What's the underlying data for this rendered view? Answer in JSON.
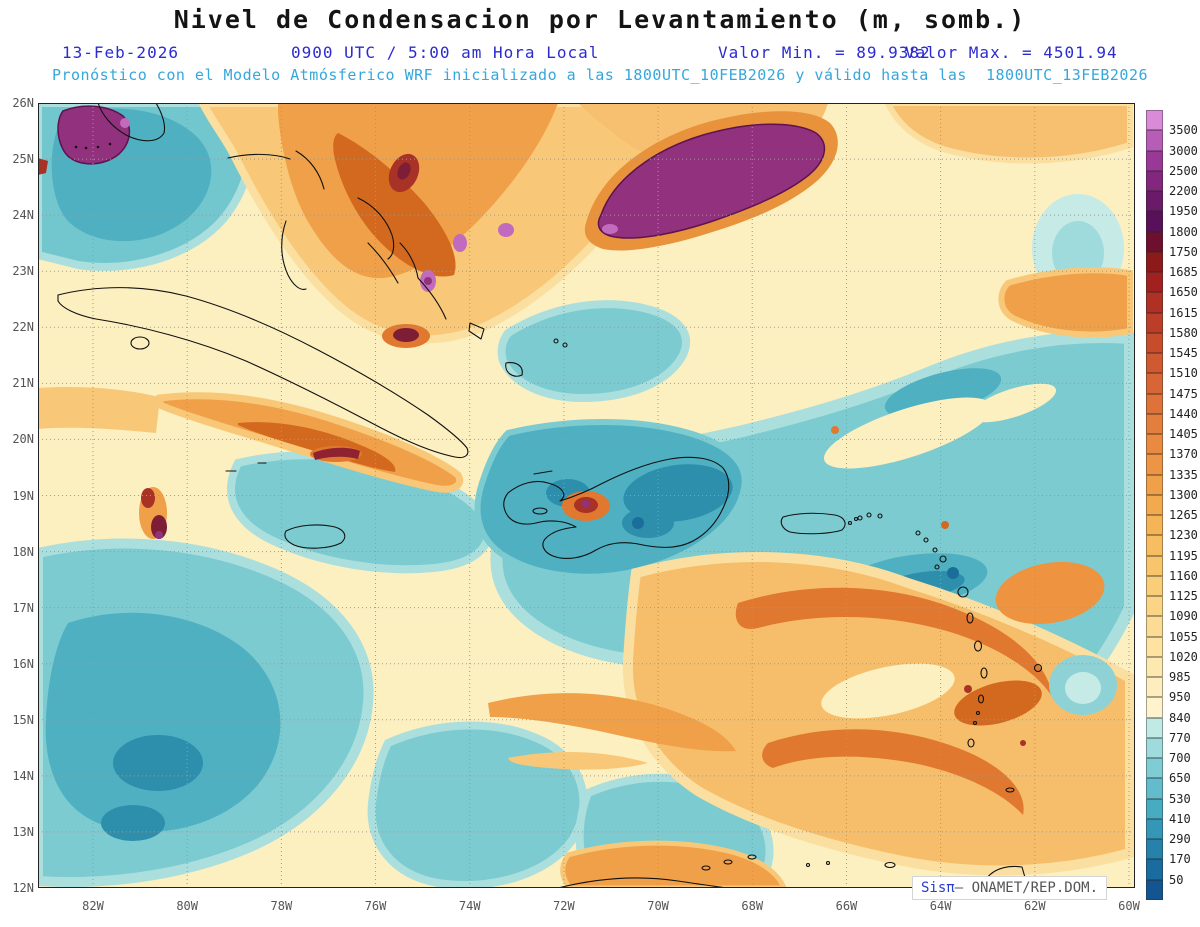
{
  "header": {
    "title": "Nivel de Condensacion por Levantamiento (m, somb.)",
    "date": "13-Feb-2026",
    "time": "0900 UTC / 5:00 am Hora Local",
    "min_label": "Valor Min. = 89.9382",
    "max_label": "Valor Max. = 4501.94",
    "forecast": "Pronóstico con el Modelo Atmósferico WRF inicializado a las 1800UTC_10FEB2026 y válido hasta las  1800UTC_13FEB2026"
  },
  "axes": {
    "lat_labels": [
      "26N",
      "25N",
      "24N",
      "23N",
      "22N",
      "21N",
      "20N",
      "19N",
      "18N",
      "17N",
      "16N",
      "15N",
      "14N",
      "13N",
      "12N"
    ],
    "lon_labels": [
      "82W",
      "80W",
      "78W",
      "76W",
      "74W",
      "72W",
      "70W",
      "68W",
      "66W",
      "64W",
      "62W",
      "60W"
    ]
  },
  "colorbar": {
    "labels": [
      "3500",
      "3000",
      "2500",
      "2200",
      "1950",
      "1800",
      "1750",
      "1685",
      "1650",
      "1615",
      "1580",
      "1545",
      "1510",
      "1475",
      "1440",
      "1405",
      "1370",
      "1335",
      "1300",
      "1265",
      "1230",
      "1195",
      "1160",
      "1125",
      "1090",
      "1055",
      "1020",
      "985",
      "950",
      "840",
      "770",
      "700",
      "650",
      "530",
      "410",
      "290",
      "170",
      "50"
    ],
    "colors": [
      "#D98BD9",
      "#B75CB7",
      "#9A3898",
      "#82267E",
      "#6A1A68",
      "#58105A",
      "#6E0F30",
      "#8C1A1A",
      "#A32020",
      "#B03024",
      "#BC3E28",
      "#C74C2C",
      "#D05A30",
      "#D86634",
      "#DE7238",
      "#E47E3C",
      "#E98A40",
      "#ED9544",
      "#F0A048",
      "#F3AA4E",
      "#F5B456",
      "#F7BD60",
      "#F8C56C",
      "#FACD78",
      "#FBD486",
      "#FCDB94",
      "#FDE2A2",
      "#FDE8B0",
      "#FEEDBE",
      "#FEF3CC",
      "#C2EAE4",
      "#9FDBDC",
      "#7FCCD4",
      "#62BCCB",
      "#47ABC2",
      "#3497B7",
      "#2682AB",
      "#1B6C9E",
      "#125590"
    ]
  },
  "watermark": {
    "brand": "Sisπ",
    "text": "– ONAMET/REP.DOM."
  },
  "chart_data": {
    "type": "heatmap",
    "title": "Nivel de Condensacion por Levantamiento (m, somb.)",
    "units": "m",
    "value_min": 89.9382,
    "value_max": 4501.94,
    "valid_date": "13-Feb-2026",
    "valid_time": "0900 UTC / 5:00 am Hora Local",
    "model": "WRF",
    "initialized": "1800UTC_10FEB2026",
    "valid_until": "1800UTC_13FEB2026",
    "lat_range_deg_north": [
      12,
      26
    ],
    "lon_range_deg_west": [
      83.2,
      59.8
    ],
    "grid": "1 deg latitude x 2 deg longitude dotted graticule",
    "contour_levels_m": [
      50,
      170,
      290,
      410,
      530,
      650,
      700,
      770,
      840,
      950,
      985,
      1020,
      1055,
      1090,
      1125,
      1160,
      1195,
      1230,
      1265,
      1300,
      1335,
      1370,
      1405,
      1440,
      1475,
      1510,
      1545,
      1580,
      1615,
      1650,
      1685,
      1750,
      1800,
      1950,
      2200,
      2500,
      3000,
      3500
    ],
    "legend_position": "right",
    "notable_features": [
      {
        "feature": "maximum purple region >3000 m",
        "approx_location": "24N-25N, 66.5W-71.5W open Atlantic"
      },
      {
        "feature": "purple maximum",
        "approx_location": "25.5N-26N near 82W-83W (Florida/Gulf corner)"
      },
      {
        "feature": "high orange band 1300-1750 m",
        "approx_location": "Bahamas, diagonal from 26N 79W to 23N 74W"
      },
      {
        "feature": "low teal values 300-840 m",
        "approx_location": "broad Atlantic east of Hispaniola and Caribbean south-west quadrant"
      },
      {
        "feature": "local maxima spots",
        "approx_location": "eastern Cuba coast ~22N 75.5W, Hispaniola interior ~19N 71.5W, ~18.9N 81W"
      },
      {
        "feature": "orange swirl region 1200-1600 m",
        "approx_location": "14N-17N, 60W-68W"
      }
    ]
  }
}
